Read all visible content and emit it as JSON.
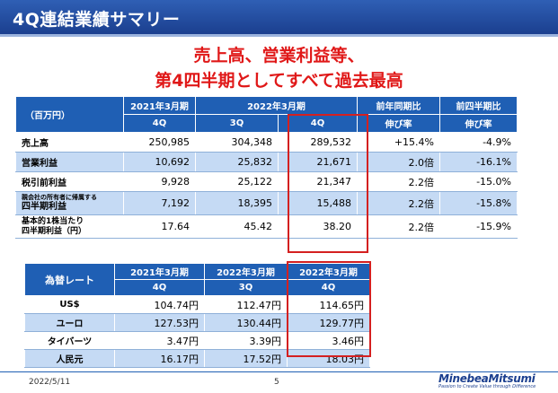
{
  "slide": {
    "title": "4Q連結業績サマリー",
    "headline_line1": "売上高、営業利益等、",
    "headline_line2": "第4四半期としてすべて過去最高"
  },
  "main_table": {
    "unit": "（百万円）",
    "col_groups": {
      "fy2021": "2021年3月期",
      "fy2022": "2022年3月期",
      "yoy": "前年同期比",
      "qoq": "前四半期比"
    },
    "sub_headers": {
      "fy2021_4q": "4Q",
      "fy2022_3q": "3Q",
      "fy2022_4q": "4Q",
      "yoy": "伸び率",
      "qoq": "伸び率"
    },
    "rows": [
      {
        "label": "売上高",
        "label2": "",
        "v1": "250,985",
        "v2": "304,348",
        "v3": "289,532",
        "yoy": "+15.4%",
        "qoq": "-4.9%"
      },
      {
        "label": "営業利益",
        "label2": "",
        "v1": "10,692",
        "v2": "25,832",
        "v3": "21,671",
        "yoy": "2.0倍",
        "qoq": "-16.1%"
      },
      {
        "label": "税引前利益",
        "label2": "",
        "v1": "9,928",
        "v2": "25,122",
        "v3": "21,347",
        "yoy": "2.2倍",
        "qoq": "-15.0%"
      },
      {
        "label": "親会社の所有者に帰属する",
        "label2": "四半期利益",
        "v1": "7,192",
        "v2": "18,395",
        "v3": "15,488",
        "yoy": "2.2倍",
        "qoq": "-15.8%"
      },
      {
        "label": "基本的1株当たり",
        "label2": "四半期利益（円）",
        "v1": "17.64",
        "v2": "45.42",
        "v3": "38.20",
        "yoy": "2.2倍",
        "qoq": "-15.9%"
      }
    ]
  },
  "fx_table": {
    "header": "為替レート",
    "cols": [
      {
        "top": "2021年3月期",
        "bottom": "4Q"
      },
      {
        "top": "2022年3月期",
        "bottom": "3Q"
      },
      {
        "top": "2022年3月期",
        "bottom": "4Q"
      }
    ],
    "rows": [
      {
        "label": "US$",
        "v1": "104.74円",
        "v2": "112.47円",
        "v3": "114.65円"
      },
      {
        "label": "ユーロ",
        "v1": "127.53円",
        "v2": "130.44円",
        "v3": "129.77円"
      },
      {
        "label": "タイバーツ",
        "v1": "3.47円",
        "v2": "3.39円",
        "v3": "3.46円"
      },
      {
        "label": "人民元",
        "v1": "16.17円",
        "v2": "17.52円",
        "v3": "18.03円"
      }
    ]
  },
  "footer": {
    "date": "2022/5/11",
    "page": "5",
    "logo_name": "MinebeaMitsumi",
    "logo_tagline": "Passion to Create Value through Difference"
  },
  "colors": {
    "header_blue": "#1f5fb4",
    "row_blue": "#c5daf4",
    "headline_red": "#e01818",
    "highlight_red": "#d42020"
  }
}
